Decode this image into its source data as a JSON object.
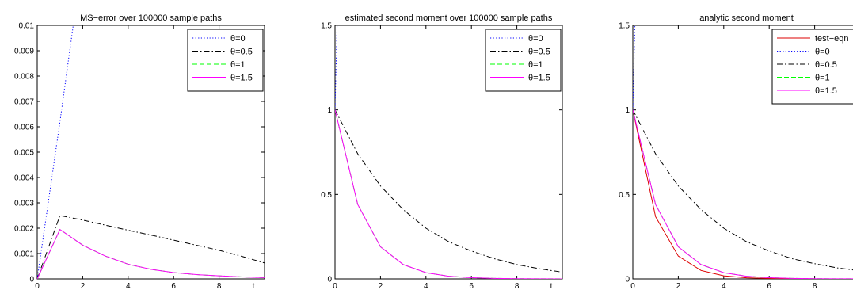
{
  "chart_data": [
    {
      "type": "line",
      "title": "MS−error over 100000 sample paths",
      "xlabel": "t",
      "ylabel": "",
      "xlim": [
        0,
        10
      ],
      "ylim": [
        0,
        0.01
      ],
      "xticks": [
        0,
        2,
        4,
        6,
        8
      ],
      "xtick_labels": [
        "0",
        "2",
        "4",
        "6",
        "8"
      ],
      "yticks": [
        0,
        0.001,
        0.002,
        0.003,
        0.004,
        0.005,
        0.006,
        0.007,
        0.008,
        0.009,
        0.01
      ],
      "ytick_labels": [
        "0",
        "0.001",
        "0.002",
        "0.003",
        "0.004",
        "0.005",
        "0.006",
        "0.007",
        "0.008",
        "0.009",
        "0.01"
      ],
      "grid": false,
      "legend_position": "top-right",
      "series": [
        {
          "name": "θ=0",
          "color": "#0000ff",
          "dash": "1.2,2.4",
          "x": [
            0,
            1,
            1.6
          ],
          "y": [
            0,
            0.0062,
            0.0101
          ]
        },
        {
          "name": "θ=0.5",
          "color": "#000000",
          "dash": "7,3,1.5,3",
          "x": [
            0,
            1,
            2,
            3,
            4,
            5,
            6,
            7,
            8,
            9,
            10
          ],
          "y": [
            0,
            0.0025,
            0.00232,
            0.00212,
            0.00192,
            0.00173,
            0.00153,
            0.00133,
            0.00113,
            0.00089,
            0.00063
          ]
        },
        {
          "name": "θ=1",
          "color": "#00ff00",
          "dash": "6,3",
          "x": [
            0,
            1,
            2,
            3,
            4,
            5,
            6,
            7,
            8,
            9,
            10
          ],
          "y": [
            0,
            0.00195,
            0.00133,
            0.0009,
            0.00058,
            0.00038,
            0.00025,
            0.00017,
            0.00012,
            8e-05,
            5e-05
          ]
        },
        {
          "name": "θ=1.5",
          "color": "#ff00ff",
          "dash": "",
          "x": [
            0,
            1,
            2,
            3,
            4,
            5,
            6,
            7,
            8,
            9,
            10
          ],
          "y": [
            0,
            0.00195,
            0.00133,
            0.0009,
            0.00058,
            0.00038,
            0.00025,
            0.00017,
            0.00012,
            8e-05,
            5e-05
          ]
        }
      ]
    },
    {
      "type": "line",
      "title": "estimated second moment over 100000 sample paths",
      "xlabel": "t",
      "ylabel": "",
      "xlim": [
        0,
        10
      ],
      "ylim": [
        0,
        1.5
      ],
      "xticks": [
        0,
        2,
        4,
        6,
        8
      ],
      "xtick_labels": [
        "0",
        "2",
        "4",
        "6",
        "8"
      ],
      "yticks": [
        0,
        0.5,
        1,
        1.5
      ],
      "ytick_labels": [
        "0",
        "0.5",
        "1",
        "1.5"
      ],
      "grid": false,
      "legend_position": "top-right",
      "series": [
        {
          "name": "θ=0",
          "color": "#0000ff",
          "dash": "1.2,2.4",
          "x": [
            0,
            0.1
          ],
          "y": [
            1,
            1.55
          ]
        },
        {
          "name": "θ=0.5",
          "color": "#000000",
          "dash": "7,3,1.5,3",
          "x": [
            0,
            1,
            2,
            3,
            4,
            5,
            6,
            7,
            8,
            9,
            10
          ],
          "y": [
            1,
            0.74,
            0.55,
            0.41,
            0.3,
            0.22,
            0.165,
            0.12,
            0.085,
            0.06,
            0.04
          ]
        },
        {
          "name": "θ=1",
          "color": "#00ff00",
          "dash": "6,3",
          "x": [
            0,
            1,
            2,
            3,
            4,
            5,
            6,
            7,
            8,
            9,
            10
          ],
          "y": [
            1,
            0.44,
            0.19,
            0.085,
            0.037,
            0.016,
            0.007,
            0.003,
            0.0013,
            0.0006,
            0.0003
          ]
        },
        {
          "name": "θ=1.5",
          "color": "#ff00ff",
          "dash": "",
          "x": [
            0,
            1,
            2,
            3,
            4,
            5,
            6,
            7,
            8,
            9,
            10
          ],
          "y": [
            1,
            0.44,
            0.19,
            0.085,
            0.037,
            0.016,
            0.007,
            0.003,
            0.0013,
            0.0006,
            0.0003
          ]
        }
      ]
    },
    {
      "type": "line",
      "title": "analytic second moment",
      "xlabel": "",
      "ylabel": "",
      "xlim": [
        0,
        10
      ],
      "ylim": [
        0,
        1.5
      ],
      "xticks": [
        0,
        2,
        4,
        6,
        8
      ],
      "xtick_labels": [
        "0",
        "2",
        "4",
        "6",
        "8"
      ],
      "yticks": [
        0,
        0.5,
        1,
        1.5
      ],
      "ytick_labels": [
        "0",
        "0.5",
        "1",
        "1.5"
      ],
      "grid": false,
      "legend_position": "top-right",
      "series": [
        {
          "name": "test−eqn",
          "color": "#dd0000",
          "dash": "",
          "x": [
            0,
            1,
            2,
            3,
            4,
            5,
            6,
            7,
            8,
            9,
            10
          ],
          "y": [
            1,
            0.368,
            0.135,
            0.05,
            0.018,
            0.0067,
            0.0025,
            0.0009,
            0.0003,
            0.0001,
            5e-05
          ]
        },
        {
          "name": "θ=0",
          "color": "#0000ff",
          "dash": "1.2,2.4",
          "x": [
            0,
            0.1
          ],
          "y": [
            1,
            1.55
          ]
        },
        {
          "name": "θ=0.5",
          "color": "#000000",
          "dash": "7,3,1.5,3",
          "x": [
            0,
            1,
            2,
            3,
            4,
            5,
            6,
            7,
            8,
            9,
            10
          ],
          "y": [
            1,
            0.74,
            0.55,
            0.41,
            0.3,
            0.22,
            0.165,
            0.12,
            0.09,
            0.065,
            0.048
          ]
        },
        {
          "name": "θ=1",
          "color": "#00ff00",
          "dash": "6,3",
          "x": [
            0,
            1,
            2,
            3,
            4,
            5,
            6,
            7,
            8,
            9,
            10
          ],
          "y": [
            1,
            0.44,
            0.19,
            0.085,
            0.037,
            0.016,
            0.007,
            0.003,
            0.0013,
            0.0006,
            0.0003
          ]
        },
        {
          "name": "θ=1.5",
          "color": "#ff00ff",
          "dash": "",
          "x": [
            0,
            1,
            2,
            3,
            4,
            5,
            6,
            7,
            8,
            9,
            10
          ],
          "y": [
            1,
            0.44,
            0.19,
            0.085,
            0.037,
            0.016,
            0.007,
            0.003,
            0.0013,
            0.0006,
            0.0003
          ]
        }
      ]
    }
  ]
}
